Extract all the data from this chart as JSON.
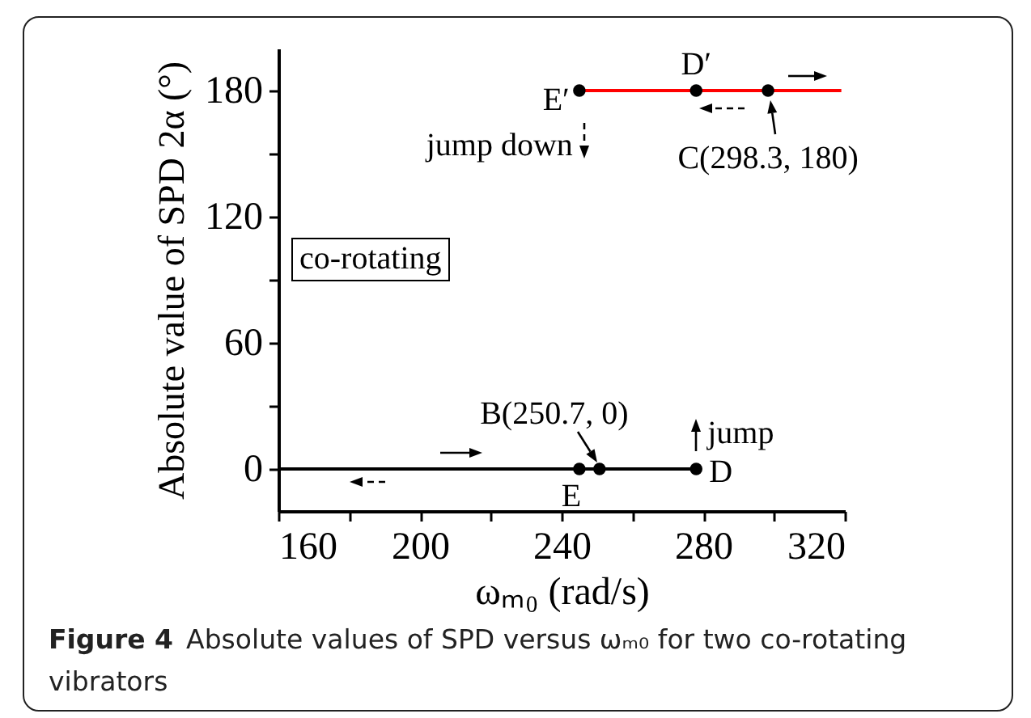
{
  "chart_data": {
    "type": "line",
    "xlabel": "ωₘ₀ (rad/s)",
    "ylabel": "Absolute value of SPD 2α (°)",
    "xlim": [
      160,
      320
    ],
    "xticks": [
      160,
      {
        "value": 180,
        "label": null
      },
      200,
      {
        "value": 220,
        "label": null
      },
      240,
      {
        "value": 260,
        "label": null
      },
      280,
      {
        "value": 300,
        "label": null
      },
      320
    ],
    "ylim": [
      -20,
      200
    ],
    "yticks": [
      0,
      {
        "value": 30,
        "label": null
      },
      60,
      {
        "value": 90,
        "label": null
      },
      120,
      {
        "value": 150,
        "label": null
      },
      180
    ],
    "series": [
      {
        "type": "line",
        "color": "#000000",
        "x": [
          160,
          278
        ],
        "values": [
          0,
          0
        ]
      },
      {
        "type": "line",
        "color": "#ff0000",
        "x": [
          245,
          319
        ],
        "values": [
          180,
          180
        ]
      },
      {
        "type": "scatter",
        "marker": "circle",
        "color": "#000000",
        "x": [
          245,
          250.7,
          278
        ],
        "values": [
          0,
          0,
          0
        ]
      },
      {
        "type": "scatter",
        "marker": "circle",
        "color": "#000000",
        "x": [
          245,
          278,
          298.3
        ],
        "values": [
          180,
          180,
          180
        ]
      }
    ],
    "annotations": [
      {
        "text": "E′",
        "x": 245,
        "y": 180
      },
      {
        "text": "D′",
        "x": 278,
        "y": 180
      },
      {
        "text": "C(298.3, 180)",
        "x": 298.3,
        "y": 180
      },
      {
        "text": "jump down",
        "x": 245,
        "y": 180
      },
      {
        "text": "B(250.7, 0)",
        "x": 250.7,
        "y": 0
      },
      {
        "text": "E",
        "x": 245,
        "y": 0
      },
      {
        "text": "D",
        "x": 278,
        "y": 0
      },
      {
        "text": "jump",
        "x": 278,
        "y": 0
      },
      "co-rotating",
      "Figure 4",
      "Absolute values of SPD versus ωₘ₀ for two co-rotating vibrators"
    ]
  }
}
